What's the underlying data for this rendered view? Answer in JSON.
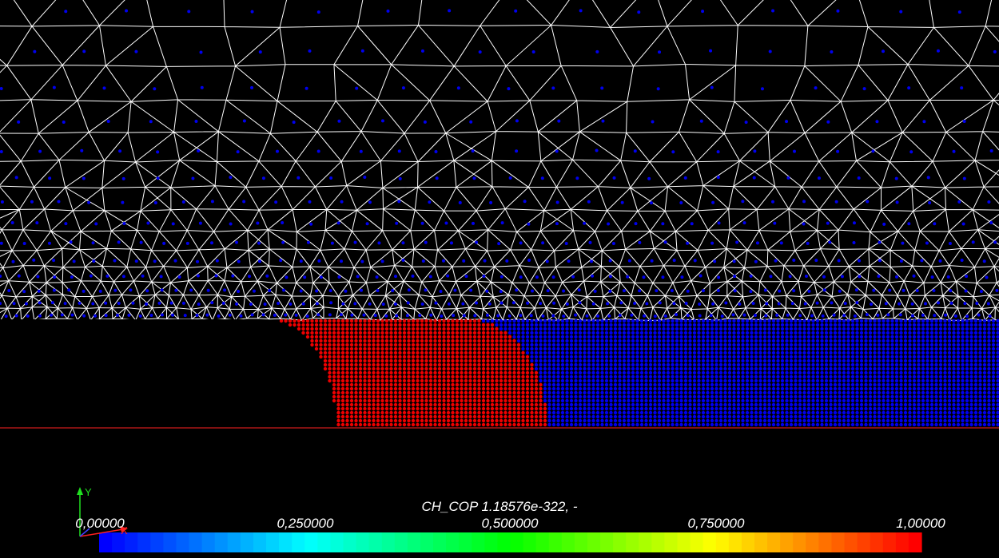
{
  "viewer": {
    "background": "#000000",
    "mesh_color": "#ffffff",
    "node_color": "#0000ee",
    "phase_color": "#ee0000",
    "boundary_color": "#ff2222"
  },
  "colorbar": {
    "title": "CH_COP 1.18576e-322, -",
    "ticks": [
      "0,00000",
      "0,250000",
      "0,500000",
      "0,750000",
      "1,00000"
    ],
    "range": [
      0,
      1
    ],
    "colormap_stops": [
      "#0000ff",
      "#00ffff",
      "#00ff00",
      "#ffff00",
      "#ff0000"
    ]
  },
  "axes": {
    "x_label": "X",
    "y_label": "Y",
    "x_color": "#ff2020",
    "y_color": "#20e020"
  }
}
